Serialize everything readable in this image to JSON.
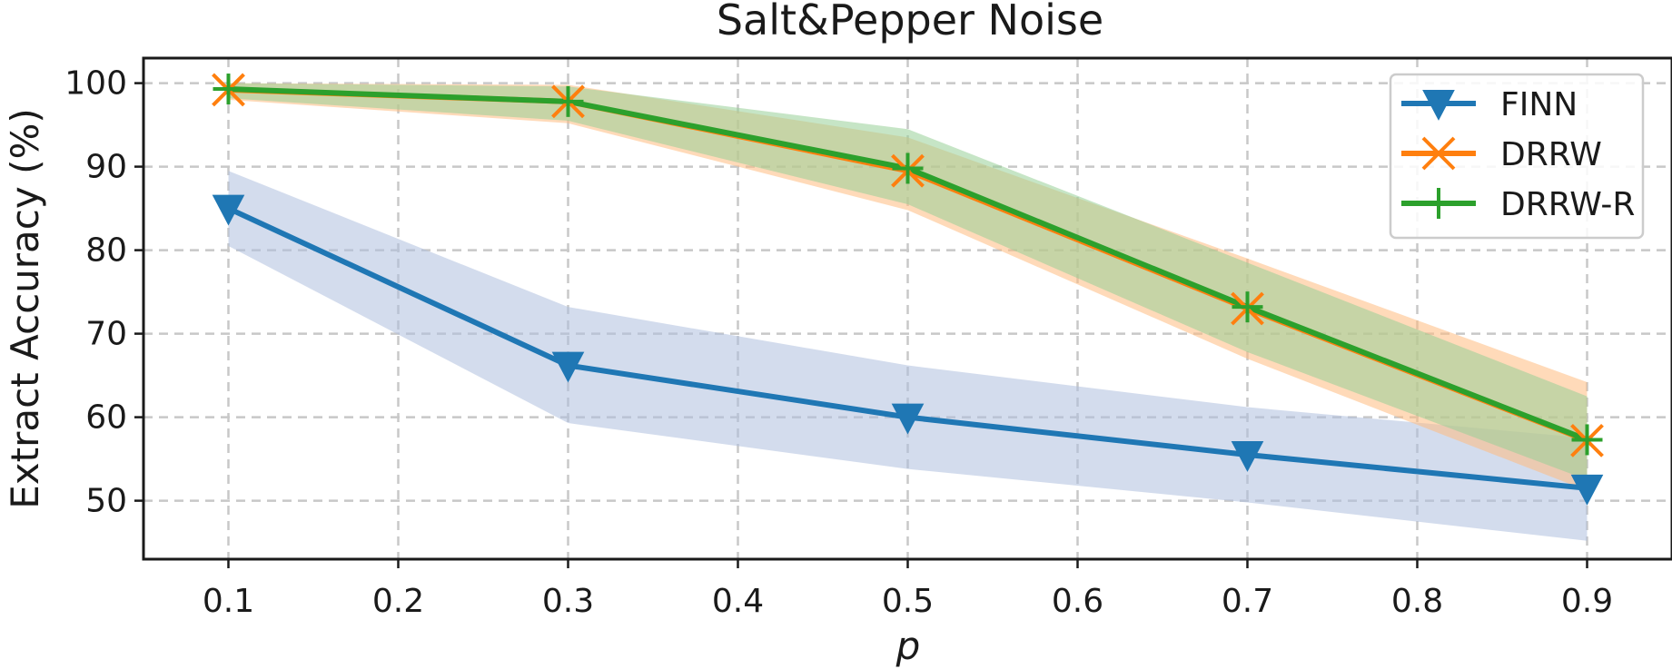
{
  "chart_data": {
    "type": "line",
    "title": "Salt&Pepper Noise",
    "xlabel": "p",
    "ylabel": "Extract Accuracy (%)",
    "xlim": [
      0.05,
      0.95
    ],
    "ylim": [
      43,
      103
    ],
    "xticks": [
      0.1,
      0.2,
      0.3,
      0.4,
      0.5,
      0.6,
      0.7,
      0.8,
      0.9
    ],
    "xtick_labels": [
      "0.1",
      "0.2",
      "0.3",
      "0.4",
      "0.5",
      "0.6",
      "0.7",
      "0.8",
      "0.9"
    ],
    "yticks": [
      50,
      60,
      70,
      80,
      90,
      100
    ],
    "ytick_labels": [
      "50",
      "60",
      "70",
      "80",
      "90",
      "100"
    ],
    "grid": true,
    "legend_position": "top-right",
    "x": [
      0.1,
      0.3,
      0.5,
      0.7,
      0.9
    ],
    "series": [
      {
        "name": "FINN",
        "color": "#1f77b4",
        "band_color": "#aebfdf",
        "marker": "triangle-down",
        "values": [
          85.0,
          66.2,
          60.0,
          55.5,
          51.5
        ],
        "lower": [
          80.5,
          59.3,
          53.8,
          49.8,
          45.2
        ],
        "upper": [
          89.5,
          73.2,
          66.2,
          61.2,
          57.5
        ]
      },
      {
        "name": "DRRW",
        "color": "#ff7f0e",
        "band_color": "#ffbb80",
        "marker": "x",
        "values": [
          99.2,
          97.8,
          89.5,
          73.0,
          57.2
        ],
        "lower": [
          98.0,
          95.2,
          84.8,
          67.0,
          51.2
        ],
        "upper": [
          100.0,
          99.8,
          93.5,
          79.0,
          64.2
        ]
      },
      {
        "name": "DRRW-R",
        "color": "#2ca02c",
        "band_color": "#98d098",
        "marker": "plus",
        "values": [
          99.3,
          97.8,
          89.8,
          73.2,
          57.3
        ],
        "lower": [
          98.2,
          95.5,
          85.5,
          67.8,
          52.5
        ],
        "upper": [
          100.0,
          99.6,
          94.5,
          78.5,
          62.5
        ]
      }
    ]
  }
}
